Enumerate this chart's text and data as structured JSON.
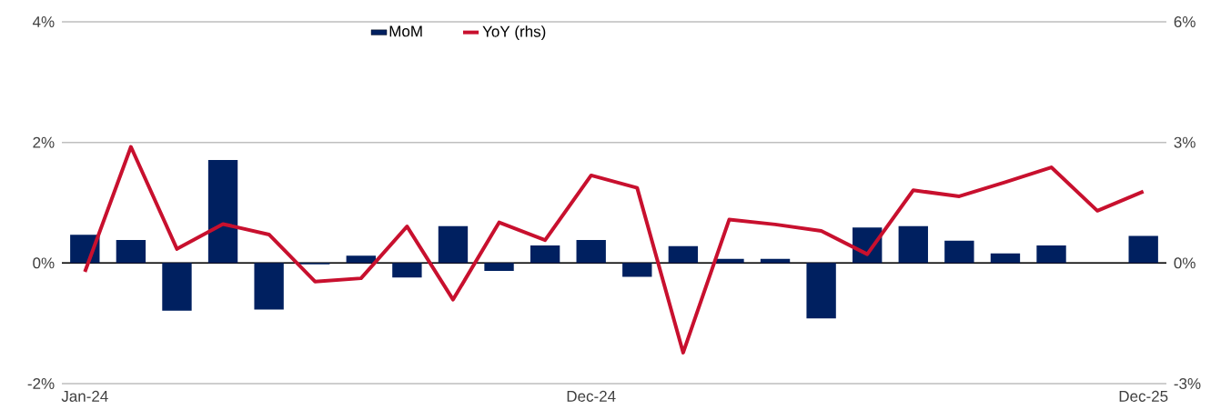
{
  "chart_data": {
    "type": "bar",
    "categories": [
      "Jan-24",
      null,
      null,
      null,
      null,
      null,
      null,
      null,
      null,
      null,
      null,
      "Dec-24",
      null,
      null,
      null,
      null,
      null,
      null,
      null,
      null,
      null,
      null,
      null,
      "Dec-25"
    ],
    "series": [
      {
        "name": "MoM",
        "color": "#002060",
        "values": [
          0.47,
          0.38,
          -0.79,
          1.71,
          -0.77,
          -0.02,
          0.12,
          -0.24,
          0.61,
          -0.13,
          0.29,
          0.38,
          -0.23,
          0.28,
          0.07,
          0.07,
          -0.92,
          0.59,
          0.61,
          0.37,
          0.16,
          0.29,
          null,
          0.45
        ]
      },
      {
        "name": "YoY (rhs)",
        "type": "line",
        "axis": "y2",
        "color": "#c8102e",
        "values": [
          -0.22,
          2.89,
          0.35,
          0.97,
          0.71,
          -0.46,
          -0.38,
          0.91,
          -0.91,
          1.01,
          0.57,
          2.18,
          1.87,
          -2.23,
          1.08,
          0.96,
          0.8,
          0.22,
          1.81,
          1.66,
          2.01,
          2.38,
          1.3,
          1.78
        ]
      }
    ],
    "ylim": [
      -2,
      4
    ],
    "yticks": [
      {
        "value": -2,
        "label": "-2%"
      },
      {
        "value": 0,
        "label": "0%"
      },
      {
        "value": 2,
        "label": "2%"
      },
      {
        "value": 4,
        "label": "4%"
      }
    ],
    "y2lim": [
      -3,
      6
    ],
    "y2ticks": [
      {
        "value": -3,
        "label": "-3%"
      },
      {
        "value": 0,
        "label": "0%"
      },
      {
        "value": 3,
        "label": "3%"
      },
      {
        "value": 6,
        "label": "6%"
      }
    ],
    "grid": "y",
    "legend": "top",
    "marker": "none",
    "line_style": "solid"
  }
}
